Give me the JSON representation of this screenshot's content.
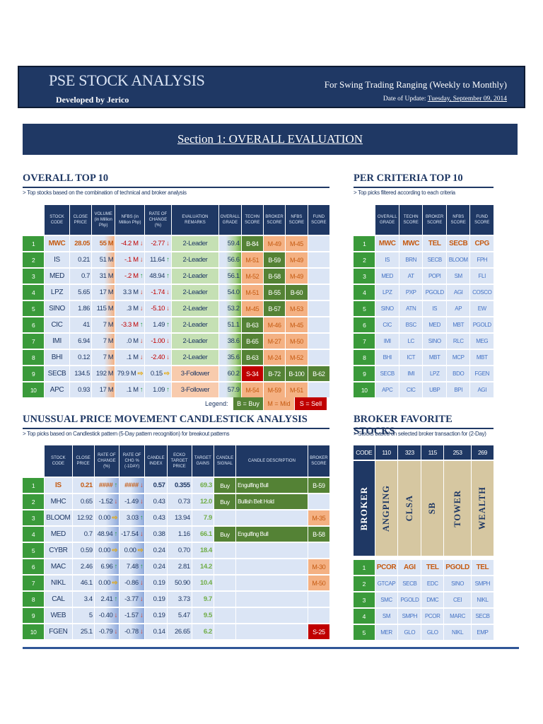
{
  "header": {
    "title": "PSE STOCK ANALYSIS",
    "developer": "Developed by Jerico",
    "tagline": "For Swing Trading Ranging (Weekly to Monthly)",
    "update_label": "Date of Update:",
    "update_date": "Tuesday, September 09, 2014"
  },
  "section_title": "Section 1: OVERALL EVALUATION",
  "overall": {
    "title": "OVERALL TOP 10",
    "subtitle": "> Top stocks based on the combination of technical and broker analysis",
    "headers": [
      "STOCK CODE",
      "CLOSE PRICE",
      "VOLUME (in Million Php)",
      "NFBS (in Million Php)",
      "RATE OF CHANGE (%)",
      "EVALUATION REMARKS",
      "OVERALL GRADE",
      "TECHN SCORE",
      "BROKER SCORE",
      "NFBS SCORE",
      "FUND SCORE"
    ],
    "rows": [
      {
        "rank": "1",
        "code": "MWC",
        "close": "28.05",
        "vol": "55 M",
        "nfbs": "-4.2 M",
        "nfbs_dir": "down",
        "roc": "-2.77",
        "roc_dir": "down",
        "remark": "2-Leader",
        "grade": "59.4",
        "tech": "B-84",
        "tech_c": "b",
        "broker": "M-49",
        "broker_c": "m",
        "nfbsc": "M-45",
        "nfbsc_c": "m",
        "fund": "",
        "fund_c": "empty",
        "highlight": true
      },
      {
        "rank": "2",
        "code": "IS",
        "close": "0.21",
        "vol": "51 M",
        "nfbs": "-.1 M",
        "nfbs_dir": "down",
        "roc": "11.64",
        "roc_dir": "up",
        "remark": "2-Leader",
        "grade": "56.6",
        "tech": "M-51",
        "tech_c": "m",
        "broker": "B-59",
        "broker_c": "b",
        "nfbsc": "M-49",
        "nfbsc_c": "m",
        "fund": "",
        "fund_c": "empty"
      },
      {
        "rank": "3",
        "code": "MED",
        "close": "0.7",
        "vol": "31 M",
        "nfbs": "-.2 M",
        "nfbs_dir": "up",
        "roc": "48.94",
        "roc_dir": "up",
        "remark": "2-Leader",
        "grade": "56.1",
        "tech": "M-52",
        "tech_c": "m",
        "broker": "B-58",
        "broker_c": "b",
        "nfbsc": "M-49",
        "nfbsc_c": "m",
        "fund": "",
        "fund_c": "empty"
      },
      {
        "rank": "4",
        "code": "LPZ",
        "close": "5.65",
        "vol": "17 M",
        "nfbs": "3.3 M",
        "nfbs_dir": "down",
        "roc": "-1.74",
        "roc_dir": "down",
        "remark": "2-Leader",
        "grade": "54.0",
        "tech": "M-51",
        "tech_c": "m",
        "broker": "B-55",
        "broker_c": "b",
        "nfbsc": "B-60",
        "nfbsc_c": "b",
        "fund": "",
        "fund_c": "empty"
      },
      {
        "rank": "5",
        "code": "SINO",
        "close": "1.86",
        "vol": "115 M",
        "nfbs": ".3 M",
        "nfbs_dir": "down",
        "roc": "-5.10",
        "roc_dir": "down",
        "remark": "2-Leader",
        "grade": "53.2",
        "tech": "M-45",
        "tech_c": "m",
        "broker": "B-57",
        "broker_c": "b",
        "nfbsc": "M-53",
        "nfbsc_c": "m",
        "fund": "",
        "fund_c": "empty"
      },
      {
        "rank": "6",
        "code": "CIC",
        "close": "41",
        "vol": "7 M",
        "nfbs": "-3.3 M",
        "nfbs_dir": "up",
        "roc": "1.49",
        "roc_dir": "up",
        "remark": "2-Leader",
        "grade": "51.1",
        "tech": "B-63",
        "tech_c": "b",
        "broker": "M-46",
        "broker_c": "m",
        "nfbsc": "M-45",
        "nfbsc_c": "m",
        "fund": "",
        "fund_c": "empty"
      },
      {
        "rank": "7",
        "code": "IMI",
        "close": "6.94",
        "vol": "7 M",
        "nfbs": ".0 M",
        "nfbs_dir": "down",
        "roc": "-1.00",
        "roc_dir": "down",
        "remark": "2-Leader",
        "grade": "38.6",
        "tech": "B-65",
        "tech_c": "b",
        "broker": "M-27",
        "broker_c": "m",
        "nfbsc": "M-50",
        "nfbsc_c": "m",
        "fund": "",
        "fund_c": "empty"
      },
      {
        "rank": "8",
        "code": "BHI",
        "close": "0.12",
        "vol": "7 M",
        "nfbs": ".1 M",
        "nfbs_dir": "down",
        "roc": "-2.40",
        "roc_dir": "down",
        "remark": "2-Leader",
        "grade": "35.6",
        "tech": "B-63",
        "tech_c": "b",
        "broker": "M-24",
        "broker_c": "m",
        "nfbsc": "M-52",
        "nfbsc_c": "m",
        "fund": "",
        "fund_c": "empty"
      },
      {
        "rank": "9",
        "code": "SECB",
        "close": "134.5",
        "vol": "192 M",
        "nfbs": "79.9 M",
        "nfbs_dir": "side",
        "roc": "0.15",
        "roc_dir": "side",
        "remark": "3-Follower",
        "grade": "60.2",
        "tech": "S-34",
        "tech_c": "s",
        "broker": "B-72",
        "broker_c": "b",
        "nfbsc": "B-100",
        "nfbsc_c": "b",
        "fund": "B-62",
        "fund_c": "b"
      },
      {
        "rank": "10",
        "code": "APC",
        "close": "0.93",
        "vol": "17 M",
        "nfbs": ".1 M",
        "nfbs_dir": "up",
        "roc": "1.09",
        "roc_dir": "up",
        "remark": "3-Follower",
        "grade": "57.9",
        "tech": "M-54",
        "tech_c": "m",
        "broker": "M-59",
        "broker_c": "m",
        "nfbsc": "M-51",
        "nfbsc_c": "m",
        "fund": "",
        "fund_c": "empty"
      }
    ]
  },
  "legend": {
    "label": "Legend:",
    "buy": "B = Buy",
    "mid": "M = Mid",
    "sell": "S = Sell"
  },
  "per_criteria": {
    "title": "PER CRITERIA TOP 10",
    "subtitle": "> Top picks filtered according to each criteria",
    "headers": [
      "OVERALL GRADE",
      "TECHN SCORE",
      "BROKER SCORE",
      "NFBS SCORE",
      "FUND SCORE"
    ],
    "rows": [
      [
        "MWC",
        "MWC",
        "TEL",
        "SECB",
        "CPG"
      ],
      [
        "IS",
        "BRN",
        "SECB",
        "BLOOM",
        "FPH"
      ],
      [
        "MED",
        "AT",
        "POPI",
        "SM",
        "FLI"
      ],
      [
        "LPZ",
        "PXP",
        "PGOLD",
        "AGI",
        "COSCO"
      ],
      [
        "SINO",
        "ATN",
        "IS",
        "AP",
        "EW"
      ],
      [
        "CIC",
        "BSC",
        "MED",
        "MBT",
        "PGOLD"
      ],
      [
        "IMI",
        "LC",
        "SINO",
        "RLC",
        "MEG"
      ],
      [
        "BHI",
        "ICT",
        "MBT",
        "MCP",
        "MBT"
      ],
      [
        "SECB",
        "IMI",
        "LPZ",
        "BDO",
        "FGEN"
      ],
      [
        "APC",
        "CIC",
        "UBP",
        "BPI",
        "AGI"
      ]
    ]
  },
  "candle": {
    "title": "UNUSSUAL PRICE MOVEMENT CANDLESTICK ANALYSIS",
    "subtitle": "> Top picks based on Candlestick pattern (5-Day pattern recognition) for breakout patterns",
    "headers": [
      "STOCK CODE",
      "CLOSE PRICE",
      "RATE OF CHANGE (%)",
      "RATE OF CHG % (-1DAY)",
      "CANDLE INDEX",
      "ECKO TARGET PRICE",
      "TARGET GAINS",
      "CANDLE SIGNAL",
      "CANDLE DESCRIPTION",
      "BROKER SCORE"
    ],
    "rows": [
      {
        "rank": "1",
        "code": "IS",
        "close": "0.21",
        "roc": "####",
        "roc_dir": "up",
        "roc1": "####",
        "roc1_dir": "down",
        "idx": "0.57",
        "target": "0.355",
        "gain": "69.3",
        "signal": "Buy",
        "desc": "Engulfing Bull",
        "broker": "B-59",
        "broker_c": "b",
        "highlight": true
      },
      {
        "rank": "2",
        "code": "MHC",
        "close": "0.65",
        "roc": "-1.52",
        "roc_dir": "down",
        "roc1": "-1.49",
        "roc1_dir": "down",
        "idx": "0.43",
        "target": "0.73",
        "gain": "12.0",
        "signal": "Buy",
        "desc": "Bullish Belt Hold",
        "broker": "",
        "broker_c": "empty"
      },
      {
        "rank": "3",
        "code": "BLOOM",
        "close": "12.92",
        "roc": "0.00",
        "roc_dir": "side",
        "roc1": "3.03",
        "roc1_dir": "up",
        "idx": "0.43",
        "target": "13.94",
        "gain": "7.9",
        "signal": "",
        "desc": "",
        "broker": "M-35",
        "broker_c": "m"
      },
      {
        "rank": "4",
        "code": "MED",
        "close": "0.7",
        "roc": "48.94",
        "roc_dir": "up",
        "roc1": "-17.54",
        "roc1_dir": "down",
        "idx": "0.38",
        "target": "1.16",
        "gain": "66.1",
        "signal": "Buy",
        "desc": "Engulfing Bull",
        "broker": "B-58",
        "broker_c": "b"
      },
      {
        "rank": "5",
        "code": "CYBR",
        "close": "0.59",
        "roc": "0.00",
        "roc_dir": "side",
        "roc1": "0.00",
        "roc1_dir": "side",
        "idx": "0.24",
        "target": "0.70",
        "gain": "18.4",
        "signal": "",
        "desc": "",
        "broker": "",
        "broker_c": "empty"
      },
      {
        "rank": "6",
        "code": "MAC",
        "close": "2.46",
        "roc": "6.96",
        "roc_dir": "up",
        "roc1": "7.48",
        "roc1_dir": "up",
        "idx": "0.24",
        "target": "2.81",
        "gain": "14.2",
        "signal": "",
        "desc": "",
        "broker": "M-30",
        "broker_c": "m"
      },
      {
        "rank": "7",
        "code": "NIKL",
        "close": "46.1",
        "roc": "0.00",
        "roc_dir": "side",
        "roc1": "-0.86",
        "roc1_dir": "down",
        "idx": "0.19",
        "target": "50.90",
        "gain": "10.4",
        "signal": "",
        "desc": "",
        "broker": "M-50",
        "broker_c": "m"
      },
      {
        "rank": "8",
        "code": "CAL",
        "close": "3.4",
        "roc": "2.41",
        "roc_dir": "up",
        "roc1": "-3.77",
        "roc1_dir": "down",
        "idx": "0.19",
        "target": "3.73",
        "gain": "9.7",
        "signal": "",
        "desc": "",
        "broker": "",
        "broker_c": "empty"
      },
      {
        "rank": "9",
        "code": "WEB",
        "close": "5",
        "roc": "-0.40",
        "roc_dir": "down",
        "roc1": "-1.57",
        "roc1_dir": "down",
        "idx": "0.19",
        "target": "5.47",
        "gain": "9.5",
        "signal": "",
        "desc": "",
        "broker": "",
        "broker_c": "empty"
      },
      {
        "rank": "10",
        "code": "FGEN",
        "close": "25.1",
        "roc": "-0.79",
        "roc_dir": "down",
        "roc1": "-0.78",
        "roc1_dir": "down",
        "idx": "0.14",
        "target": "26.65",
        "gain": "6.2",
        "signal": "",
        "desc": "",
        "broker": "S-25",
        "broker_c": "s"
      }
    ]
  },
  "broker_fav": {
    "title": "BROKER FAVORITE STOCKS",
    "subtitle": "> Stocks based on selected broker transaction for (2-Day)",
    "code_label": "CODE",
    "codes": [
      "110",
      "323",
      "115",
      "253",
      "269"
    ],
    "broker_label": "BROKER",
    "names": [
      "ANGPING",
      "CLSA",
      "SB",
      "TOWER",
      "WEALTH"
    ],
    "rows": [
      [
        "PCOR",
        "AGI",
        "TEL",
        "PGOLD",
        "TEL"
      ],
      [
        "GTCAP",
        "SECB",
        "EDC",
        "SINO",
        "SMPH"
      ],
      [
        "SMC",
        "PGOLD",
        "DMC",
        "CEI",
        "NIKL"
      ],
      [
        "SM",
        "SMPH",
        "PCOR",
        "MARC",
        "SECB"
      ],
      [
        "MER",
        "GLO",
        "GLO",
        "NIKL",
        "EMP"
      ]
    ]
  }
}
